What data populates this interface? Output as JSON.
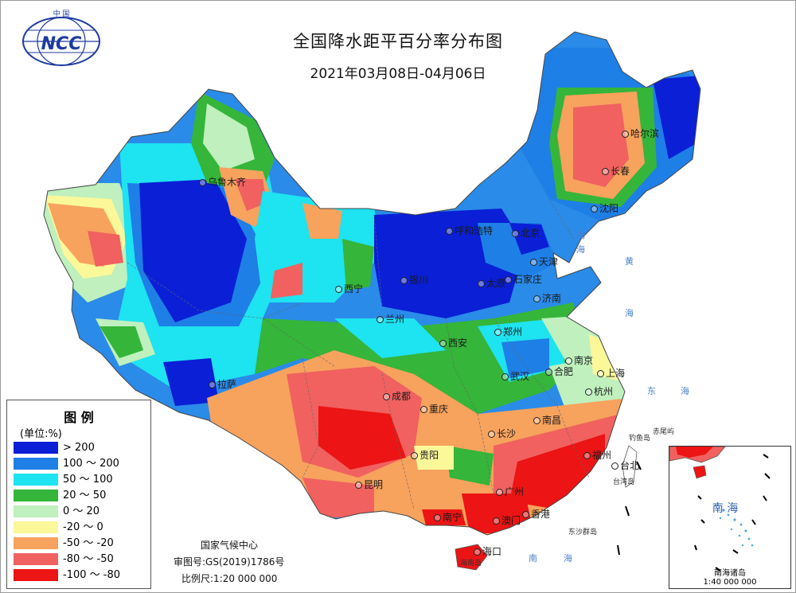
{
  "title": "全国降水距平百分率分布图",
  "subtitle": "2021年03月08日-04月06日",
  "logo": {
    "text_top": "中 国",
    "text_main": "NCC",
    "icon": "ncc-globe-logo"
  },
  "legend": {
    "title": "图 例",
    "unit": "(单位:%)",
    "items": [
      {
        "label": "> 200",
        "color": "#0a1fd6"
      },
      {
        "label": "100 ～ 200",
        "color": "#1e7fe6"
      },
      {
        "label": "50 ～ 100",
        "color": "#1ee3f0"
      },
      {
        "label": "20 ～ 50",
        "color": "#35b53a"
      },
      {
        "label": "0 ～ 20",
        "color": "#bff0bd"
      },
      {
        "label": "-20 ～ 0",
        "color": "#fbf89a"
      },
      {
        "label": "-50 ～ -20",
        "color": "#f7a25d"
      },
      {
        "label": "-80 ～ -50",
        "color": "#f06160"
      },
      {
        "label": "-100 ～ -80",
        "color": "#ec1414"
      }
    ]
  },
  "credits": {
    "org": "国家气候中心",
    "map_no": "审图号:GS(2019)1786号",
    "scale": "比例尺:1:20 000 000"
  },
  "cities": [
    {
      "name": "乌鲁木齐"
    },
    {
      "name": "哈尔滨"
    },
    {
      "name": "长春"
    },
    {
      "name": "沈阳"
    },
    {
      "name": "呼和浩特"
    },
    {
      "name": "北京"
    },
    {
      "name": "天津"
    },
    {
      "name": "银川"
    },
    {
      "name": "太原"
    },
    {
      "name": "石家庄"
    },
    {
      "name": "济南"
    },
    {
      "name": "西宁"
    },
    {
      "name": "兰州"
    },
    {
      "name": "郑州"
    },
    {
      "name": "西安"
    },
    {
      "name": "南京"
    },
    {
      "name": "合肥"
    },
    {
      "name": "上海"
    },
    {
      "name": "武汉"
    },
    {
      "name": "杭州"
    },
    {
      "name": "拉萨"
    },
    {
      "name": "成都"
    },
    {
      "name": "重庆"
    },
    {
      "name": "南昌"
    },
    {
      "name": "长沙"
    },
    {
      "name": "福州"
    },
    {
      "name": "台北"
    },
    {
      "name": "贵阳"
    },
    {
      "name": "昆明"
    },
    {
      "name": "广州"
    },
    {
      "name": "香港"
    },
    {
      "name": "澳门"
    },
    {
      "name": "南宁"
    },
    {
      "name": "海口"
    }
  ],
  "seas": [
    "渤",
    "海",
    "黄",
    "海",
    "东",
    "海",
    "南",
    "海"
  ],
  "places": [
    "钓鱼岛",
    "赤尾屿",
    "台湾岛",
    "东沙群岛",
    "海南岛"
  ],
  "inset": {
    "sea_label": "南 海",
    "caption_line1": "南海诸岛",
    "caption_line2": "1:40 000 000"
  }
}
